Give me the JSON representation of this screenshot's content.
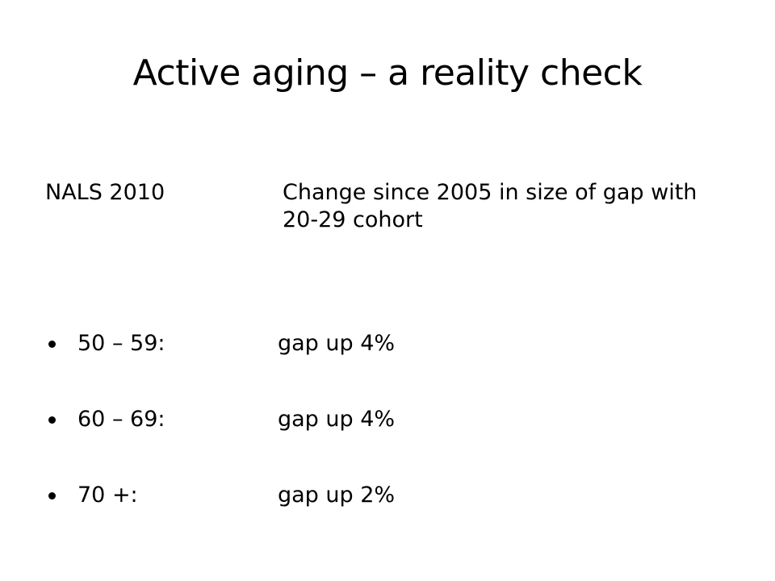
{
  "slide": {
    "title": "Active aging – a reality check",
    "header_left": "NALS 2010",
    "header_right": "Change since 2005 in size of gap with 20-29 cohort",
    "bullets": [
      {
        "label": "50 – 59:",
        "value": "gap up 4%"
      },
      {
        "label": "60 – 69:",
        "value": "gap up 4%"
      },
      {
        "label": "70 +:",
        "value": "gap up 2%"
      }
    ]
  }
}
